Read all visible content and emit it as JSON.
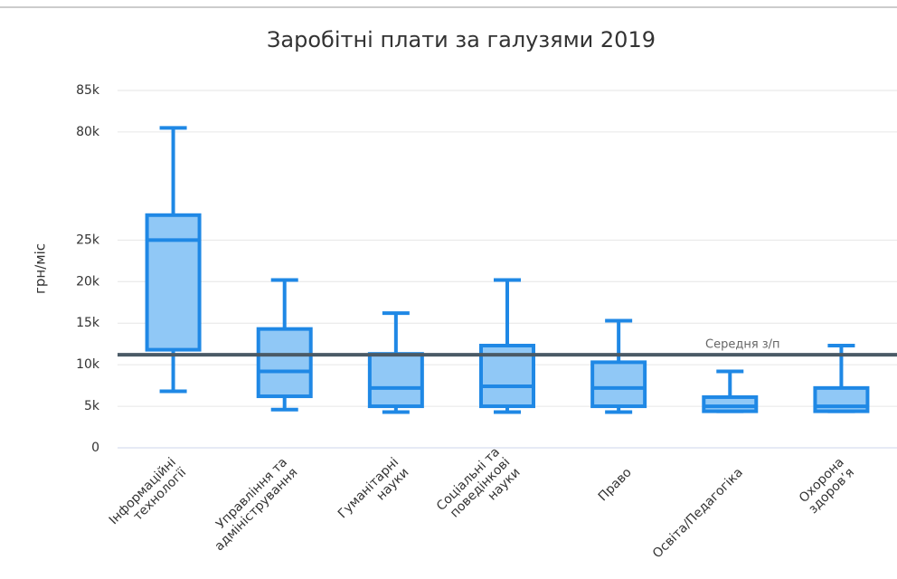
{
  "chart_data": {
    "type": "boxplot",
    "title": "Заробітні плати за галузями 2019",
    "y_label": "грн/міс",
    "categories": [
      [
        "Інформаційні",
        "технології"
      ],
      [
        "Управління та",
        "адміністрування"
      ],
      [
        "Гуманітарні",
        "науки"
      ],
      [
        "Соціальні та",
        "поведінкові",
        "науки"
      ],
      [
        "Право"
      ],
      [
        "Освіта/Педагогіка"
      ],
      [
        "Охорона",
        "здоров’я"
      ]
    ],
    "boxes": [
      {
        "low": 6800,
        "q1": 11800,
        "median": 25000,
        "q3": 28000,
        "high": 80500
      },
      {
        "low": 4600,
        "q1": 6200,
        "median": 9200,
        "q3": 14300,
        "high": 20200
      },
      {
        "low": 4300,
        "q1": 5000,
        "median": 7200,
        "q3": 11300,
        "high": 16200
      },
      {
        "low": 4300,
        "q1": 5000,
        "median": 7400,
        "q3": 12300,
        "high": 20200
      },
      {
        "low": 4300,
        "q1": 5000,
        "median": 7200,
        "q3": 10300,
        "high": 15300
      },
      {
        "low": 4400,
        "q1": 4400,
        "median": 5000,
        "q3": 6100,
        "high": 9200
      },
      {
        "low": 4400,
        "q1": 4400,
        "median": 5000,
        "q3": 7200,
        "high": 12300
      }
    ],
    "color": "#1f88e5",
    "fill": "#90c8f6",
    "ylim": [
      0,
      85000
    ],
    "y_break": {
      "from": 30000,
      "to": 72000
    },
    "yticks": [
      0,
      {
        "value": 5000,
        "label": "5k"
      },
      {
        "value": 10000,
        "label": "10k"
      },
      {
        "value": 15000,
        "label": "15k"
      },
      {
        "value": 20000,
        "label": "20k"
      },
      {
        "value": 25000,
        "label": "25k"
      },
      {
        "value": 80000,
        "label": "80k"
      },
      {
        "value": 85000,
        "label": "85k"
      }
    ],
    "grid": true,
    "plot_line": {
      "value": 11200,
      "label": "Середня з/п",
      "color": "#4a5a66"
    }
  }
}
